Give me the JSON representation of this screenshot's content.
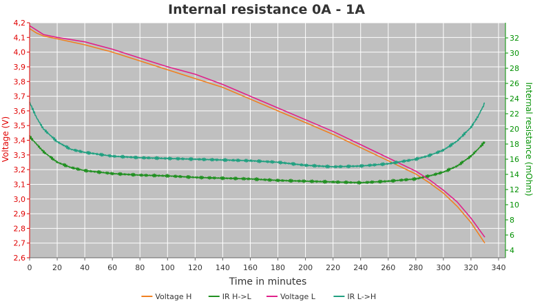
{
  "chart_data": {
    "type": "line",
    "title": "Internal resistance  0A - 1A",
    "xlabel": "Time in minutes",
    "ylabel_left": "Voltage (V)",
    "ylabel_right": "Internal resistance (mOhm)",
    "xlim": [
      0,
      345
    ],
    "ylim_left": [
      2.6,
      4.2
    ],
    "ylim_right": [
      3,
      34
    ],
    "x_ticks": [
      "0",
      "20",
      "40",
      "60",
      "80",
      "100",
      "120",
      "140",
      "160",
      "180",
      "200",
      "220",
      "240",
      "260",
      "280",
      "300",
      "320",
      "340"
    ],
    "y_left_ticks": [
      "2,6",
      "2,7",
      "2,8",
      "2,9",
      "3,0",
      "3,1",
      "3,2",
      "3,3",
      "3,4",
      "3,5",
      "3,6",
      "3,7",
      "3,8",
      "3,9",
      "4,0",
      "4,1",
      "4,2"
    ],
    "y_right_ticks": [
      "4",
      "6",
      "8",
      "10",
      "12",
      "14",
      "16",
      "18",
      "20",
      "22",
      "24",
      "26",
      "28",
      "30",
      "32"
    ],
    "grid": true,
    "background": "#c0c0c0",
    "legend_position": "bottom",
    "series": [
      {
        "name": "Voltage H",
        "axis": "left",
        "color": "#f08020",
        "x": [
          0,
          5,
          10,
          20,
          40,
          60,
          80,
          100,
          120,
          140,
          160,
          180,
          200,
          220,
          240,
          260,
          280,
          290,
          300,
          310,
          320,
          330
        ],
        "y": [
          4.16,
          4.13,
          4.11,
          4.09,
          4.05,
          4.0,
          3.94,
          3.88,
          3.82,
          3.76,
          3.68,
          3.6,
          3.52,
          3.44,
          3.35,
          3.26,
          3.17,
          3.11,
          3.04,
          2.95,
          2.84,
          2.7
        ]
      },
      {
        "name": "IR H->L",
        "axis": "right",
        "color": "#209020",
        "x": [
          0,
          5,
          10,
          20,
          30,
          40,
          60,
          80,
          100,
          120,
          140,
          160,
          180,
          200,
          220,
          240,
          260,
          280,
          290,
          300,
          310,
          320,
          325,
          330
        ],
        "y": [
          19,
          18,
          17,
          15.6,
          14.9,
          14.5,
          14.1,
          13.9,
          13.8,
          13.6,
          13.5,
          13.4,
          13.2,
          13.1,
          13.0,
          12.9,
          13.1,
          13.4,
          13.8,
          14.3,
          15.1,
          16.4,
          17.3,
          18.3
        ]
      },
      {
        "name": "Voltage L",
        "axis": "left",
        "color": "#e0208a",
        "x": [
          0,
          5,
          10,
          20,
          40,
          60,
          80,
          100,
          120,
          140,
          160,
          180,
          200,
          220,
          240,
          260,
          280,
          290,
          300,
          310,
          320,
          330
        ],
        "y": [
          4.18,
          4.15,
          4.12,
          4.1,
          4.07,
          4.02,
          3.96,
          3.9,
          3.85,
          3.78,
          3.7,
          3.62,
          3.54,
          3.46,
          3.37,
          3.28,
          3.19,
          3.13,
          3.06,
          2.98,
          2.87,
          2.74
        ]
      },
      {
        "name": "IR L->H",
        "axis": "right",
        "color": "#20a080",
        "x": [
          0,
          5,
          10,
          20,
          30,
          40,
          60,
          80,
          100,
          120,
          140,
          160,
          180,
          200,
          220,
          240,
          260,
          280,
          290,
          300,
          310,
          320,
          325,
          330
        ],
        "y": [
          23.5,
          21.5,
          20,
          18.3,
          17.3,
          16.9,
          16.4,
          16.2,
          16.1,
          16.0,
          15.9,
          15.8,
          15.6,
          15.2,
          15.0,
          15.1,
          15.4,
          16.0,
          16.5,
          17.2,
          18.4,
          20.2,
          21.6,
          23.4
        ]
      }
    ]
  }
}
